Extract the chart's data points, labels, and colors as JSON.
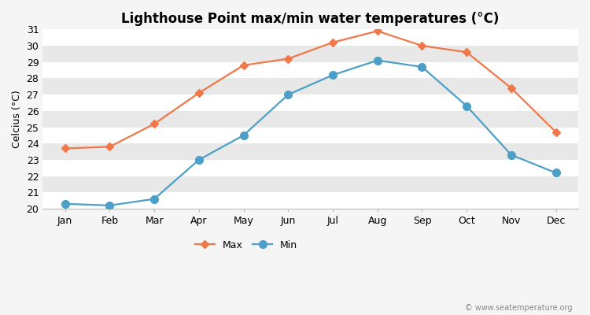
{
  "title": "Lighthouse Point max/min water temperatures (°C)",
  "ylabel": "Celcius (°C)",
  "months": [
    "Jan",
    "Feb",
    "Mar",
    "Apr",
    "May",
    "Jun",
    "Jul",
    "Aug",
    "Sep",
    "Oct",
    "Nov",
    "Dec"
  ],
  "max_temps": [
    23.7,
    23.8,
    25.2,
    27.1,
    28.8,
    29.2,
    30.2,
    30.9,
    30.0,
    29.6,
    27.4,
    24.7
  ],
  "min_temps": [
    20.3,
    20.2,
    20.6,
    23.0,
    24.5,
    27.0,
    28.2,
    29.1,
    28.7,
    26.3,
    23.3,
    22.2
  ],
  "max_color": "#f07848",
  "min_color": "#4ca0c8",
  "fig_bg_color": "#f5f5f5",
  "plot_bg_color": "#e8e8e8",
  "stripe_color": "#f2f2f2",
  "grid_color": "#ffffff",
  "ylim": [
    20,
    31
  ],
  "yticks": [
    20,
    21,
    22,
    23,
    24,
    25,
    26,
    27,
    28,
    29,
    30,
    31
  ],
  "max_marker": "D",
  "min_marker": "o",
  "max_markersize": 5,
  "min_markersize": 7,
  "linewidth": 1.6,
  "title_fontsize": 12,
  "label_fontsize": 9,
  "tick_fontsize": 9,
  "legend_labels": [
    "Max",
    "Min"
  ],
  "watermark": "© www.seatemperature.org"
}
